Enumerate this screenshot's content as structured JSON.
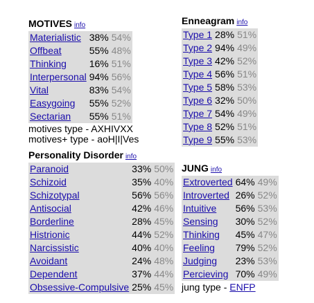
{
  "motives": {
    "title": "MOTIVES",
    "info": "info",
    "rows": [
      {
        "label": "Materialistic",
        "v1": "38%",
        "v2": "54%"
      },
      {
        "label": "Offbeat",
        "v1": "55%",
        "v2": "48%"
      },
      {
        "label": "Thinking",
        "v1": "16%",
        "v2": "51%"
      },
      {
        "label": "Interpersonal",
        "v1": "94%",
        "v2": "56%"
      },
      {
        "label": "Vital",
        "v1": "83%",
        "v2": "54%"
      },
      {
        "label": "Easygoing",
        "v1": "55%",
        "v2": "52%"
      },
      {
        "label": "Sectarian",
        "v1": "55%",
        "v2": "51%"
      }
    ],
    "type_line": "motives type - AXHIVXX",
    "plus_line": "motives+ type - aoH|I|Ves"
  },
  "enneagram": {
    "title": "Enneagram",
    "info": "info",
    "rows": [
      {
        "label": "Type 1",
        "v1": "28%",
        "v2": "51%"
      },
      {
        "label": "Type 2",
        "v1": "94%",
        "v2": "49%"
      },
      {
        "label": "Type 3",
        "v1": "42%",
        "v2": "52%"
      },
      {
        "label": "Type 4",
        "v1": "56%",
        "v2": "51%"
      },
      {
        "label": "Type 5",
        "v1": "58%",
        "v2": "53%"
      },
      {
        "label": "Type 6",
        "v1": "32%",
        "v2": "50%"
      },
      {
        "label": "Type 7",
        "v1": "54%",
        "v2": "49%"
      },
      {
        "label": "Type 8",
        "v1": "52%",
        "v2": "51%"
      },
      {
        "label": "Type 9",
        "v1": "55%",
        "v2": "53%"
      }
    ]
  },
  "personality": {
    "title": "Personality Disorder",
    "info": "info",
    "rows": [
      {
        "label": "Paranoid",
        "v1": "33%",
        "v2": "50%"
      },
      {
        "label": "Schizoid",
        "v1": "35%",
        "v2": "40%"
      },
      {
        "label": "Schizotypal",
        "v1": "56%",
        "v2": "56%"
      },
      {
        "label": "Antisocial",
        "v1": "42%",
        "v2": "46%"
      },
      {
        "label": "Borderline",
        "v1": "28%",
        "v2": "45%"
      },
      {
        "label": "Histrionic",
        "v1": "44%",
        "v2": "52%"
      },
      {
        "label": "Narcissistic",
        "v1": "40%",
        "v2": "40%"
      },
      {
        "label": "Avoidant",
        "v1": "24%",
        "v2": "48%"
      },
      {
        "label": "Dependent",
        "v1": "37%",
        "v2": "44%"
      },
      {
        "label": "Obsessive-Compulsive",
        "v1": "25%",
        "v2": "45%"
      }
    ]
  },
  "jung": {
    "title": "JUNG",
    "info": "info",
    "rows": [
      {
        "label": "Extroverted",
        "v1": "64%",
        "v2": "49%"
      },
      {
        "label": "Introverted",
        "v1": "26%",
        "v2": "52%"
      },
      {
        "label": "Intuitive",
        "v1": "56%",
        "v2": "53%"
      },
      {
        "label": "Sensing",
        "v1": "30%",
        "v2": "52%"
      },
      {
        "label": "Thinking",
        "v1": "45%",
        "v2": "47%"
      },
      {
        "label": "Feeling",
        "v1": "79%",
        "v2": "52%"
      },
      {
        "label": "Judging",
        "v1": "23%",
        "v2": "53%"
      },
      {
        "label": "Percieving",
        "v1": "70%",
        "v2": "49%"
      }
    ],
    "type_prefix": "jung type - ",
    "type_value": "ENFP"
  }
}
